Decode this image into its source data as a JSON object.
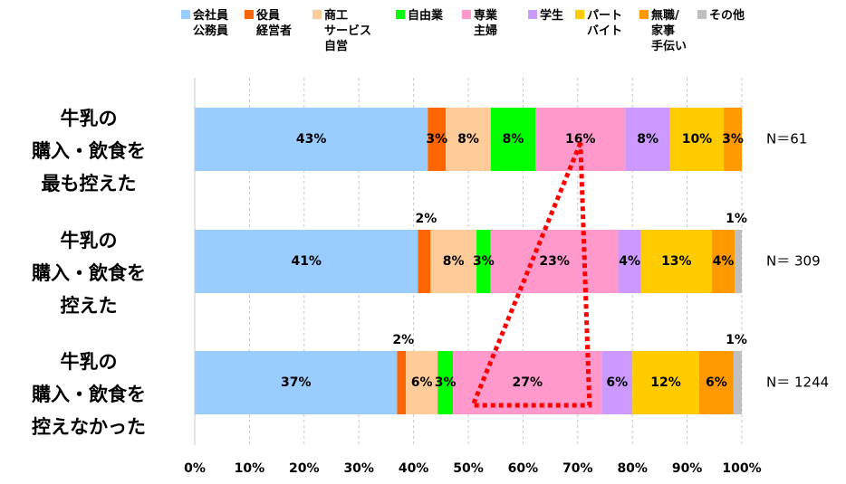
{
  "chart_data": {
    "type": "bar",
    "orientation": "horizontal",
    "stacked": true,
    "percent": true,
    "xlim": [
      0,
      100
    ],
    "x_ticks": [
      "0%",
      "10%",
      "20%",
      "30%",
      "40%",
      "50%",
      "60%",
      "70%",
      "80%",
      "90%",
      "100%"
    ],
    "grid": true,
    "legend_position": "top",
    "categories": [
      [
        "牛乳の",
        "購入・飲食を",
        "最も控えた"
      ],
      [
        "牛乳の",
        "購入・飲食を",
        "控えた"
      ],
      [
        "牛乳の",
        "購入・飲食を",
        "控えなかった"
      ]
    ],
    "n_labels": [
      "N＝61",
      "N＝ 309",
      "N＝ 1244"
    ],
    "series": [
      {
        "name": [
          "会社員",
          "公務員"
        ],
        "color": "#99CCFF",
        "values": [
          42.6,
          40.8,
          37.0
        ],
        "labels": [
          "43%",
          "41%",
          "37%"
        ]
      },
      {
        "name": [
          "役員",
          "経営者"
        ],
        "color": "#FF6600",
        "values": [
          3.3,
          2.3,
          1.6
        ],
        "labels": [
          "3%",
          "2%",
          "2%"
        ]
      },
      {
        "name": [
          "商工",
          "サービス",
          "自営"
        ],
        "color": "#FFCC99",
        "values": [
          8.2,
          8.4,
          5.8
        ],
        "labels": [
          "8%",
          "8%",
          "6%"
        ]
      },
      {
        "name": [
          "自由業"
        ],
        "color": "#00FF00",
        "values": [
          8.2,
          2.6,
          2.8
        ],
        "labels": [
          "8%",
          "3%",
          "3%"
        ]
      },
      {
        "name": [
          "専業",
          "主婦"
        ],
        "color": "#FF99CC",
        "values": [
          16.4,
          23.3,
          27.2
        ],
        "labels": [
          "16%",
          "23%",
          "27%"
        ]
      },
      {
        "name": [
          "学生"
        ],
        "color": "#CC99FF",
        "values": [
          8.2,
          4.2,
          5.6
        ],
        "labels": [
          "8%",
          "4%",
          "6%"
        ]
      },
      {
        "name": [
          "パート",
          "バイト"
        ],
        "color": "#FFCC00",
        "values": [
          9.8,
          12.9,
          12.2
        ],
        "labels": [
          "10%",
          "13%",
          "12%"
        ]
      },
      {
        "name": [
          "無職/",
          "家事",
          "手伝い"
        ],
        "color": "#FF9900",
        "values": [
          3.3,
          4.2,
          6.3
        ],
        "labels": [
          "3%",
          "4%",
          "6%"
        ]
      },
      {
        "name": [
          "その他"
        ],
        "color": "#C0C0C0",
        "values": [
          0.0,
          1.3,
          1.5
        ],
        "labels": [
          "",
          "1%",
          "1%"
        ]
      }
    ],
    "annotation": {
      "type": "dotted-triangle",
      "color": "#FF0000"
    }
  }
}
